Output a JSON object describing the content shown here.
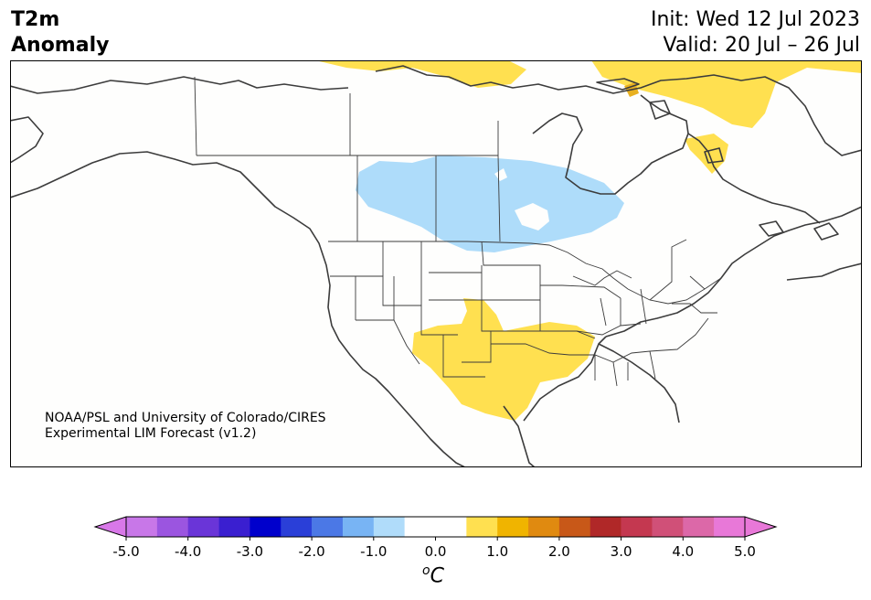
{
  "header": {
    "title_line1": "T2m",
    "title_line2": "Anomaly",
    "init": "Init: Wed 12 Jul 2023",
    "valid": "Valid: 20 Jul – 26 Jul"
  },
  "credit": {
    "line1": "NOAA/PSL and University of Colorado/CIRES",
    "line2": "Experimental LIM Forecast (v1.2)"
  },
  "colorbar": {
    "unit_symbol": "o",
    "unit_letter": "C",
    "ticks": [
      "-5.0",
      "-4.0",
      "-3.0",
      "-2.0",
      "-1.0",
      "0.0",
      "1.0",
      "2.0",
      "3.0",
      "4.0",
      "5.0"
    ],
    "min_color": "#d878e8",
    "max_color": "#e878d8",
    "colors": [
      "#c877e8",
      "#9b55e0",
      "#6a35d8",
      "#3a1fd0",
      "#0000cc",
      "#2a3fd8",
      "#4b78e6",
      "#78b4f4",
      "#b0dcfa",
      "#ffffff",
      "#ffffff",
      "#ffe050",
      "#f0b400",
      "#e08a10",
      "#c85818",
      "#b02828",
      "#c43850",
      "#d05078",
      "#dc68a8",
      "#e878d8"
    ]
  },
  "map": {
    "land_color": "#fefefd",
    "line_color": "#3c3c3c",
    "anomalies": [
      {
        "region": "Canadian Arctic Archipelago",
        "sign": "warm",
        "color": "#ffe050"
      },
      {
        "region": "Northern Quebec / Hudson Bay",
        "sign": "warm",
        "color": "#ffe050"
      },
      {
        "region": "Canadian Prairies",
        "sign": "cool",
        "color": "#aedcfa"
      },
      {
        "region": "Southern Plains / Southwest US / Northern Mexico",
        "sign": "warm",
        "color": "#ffe050"
      }
    ]
  }
}
